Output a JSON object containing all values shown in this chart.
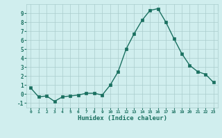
{
  "x": [
    0,
    1,
    2,
    3,
    4,
    5,
    6,
    7,
    8,
    9,
    10,
    11,
    12,
    13,
    14,
    15,
    16,
    17,
    18,
    19,
    20,
    21,
    22,
    23
  ],
  "y": [
    0.7,
    -0.3,
    -0.2,
    -0.8,
    -0.3,
    -0.2,
    -0.1,
    0.1,
    0.1,
    -0.1,
    1.0,
    2.5,
    5.0,
    6.7,
    8.2,
    9.3,
    9.5,
    8.0,
    6.2,
    4.5,
    3.2,
    2.5,
    2.2,
    1.3
  ],
  "xlabel": "Humidex (Indice chaleur)",
  "line_color": "#1a7060",
  "marker_color": "#1a7060",
  "bg_color": "#d0eeee",
  "grid_color": "#aacccc",
  "tick_label_color": "#1a7060",
  "ylim": [
    -1.5,
    10.0
  ],
  "xlim": [
    -0.5,
    23.5
  ],
  "yticks": [
    -1,
    0,
    1,
    2,
    3,
    4,
    5,
    6,
    7,
    8,
    9
  ],
  "xticks": [
    0,
    1,
    2,
    3,
    4,
    5,
    6,
    7,
    8,
    9,
    10,
    11,
    12,
    13,
    14,
    15,
    16,
    17,
    18,
    19,
    20,
    21,
    22,
    23
  ]
}
